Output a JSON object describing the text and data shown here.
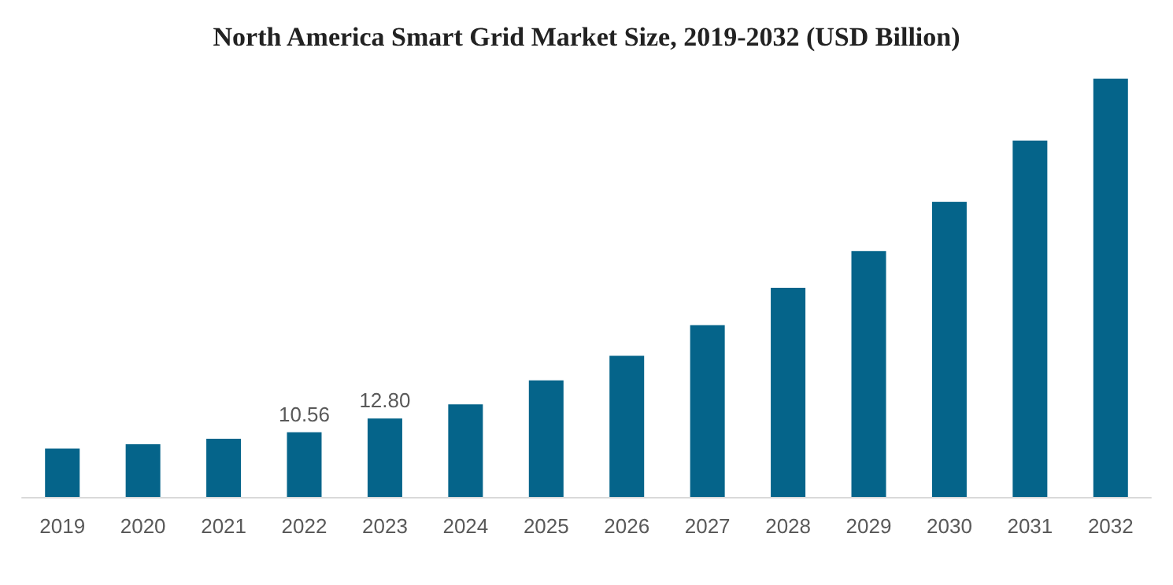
{
  "chart_data": {
    "type": "bar",
    "title": "North America Smart Grid Market Size, 2019-2032 (USD Billion)",
    "categories": [
      "2019",
      "2020",
      "2021",
      "2022",
      "2023",
      "2024",
      "2025",
      "2026",
      "2027",
      "2028",
      "2029",
      "2030",
      "2031",
      "2032"
    ],
    "values": [
      7.9,
      8.6,
      9.5,
      10.56,
      12.8,
      15.1,
      19.0,
      23.0,
      28.0,
      34.1,
      40.1,
      48.1,
      58.1,
      68.2
    ],
    "value_labels": [
      null,
      null,
      null,
      "10.56",
      "12.80",
      null,
      null,
      null,
      null,
      null,
      null,
      null,
      null,
      null
    ],
    "color": "#05648a"
  }
}
